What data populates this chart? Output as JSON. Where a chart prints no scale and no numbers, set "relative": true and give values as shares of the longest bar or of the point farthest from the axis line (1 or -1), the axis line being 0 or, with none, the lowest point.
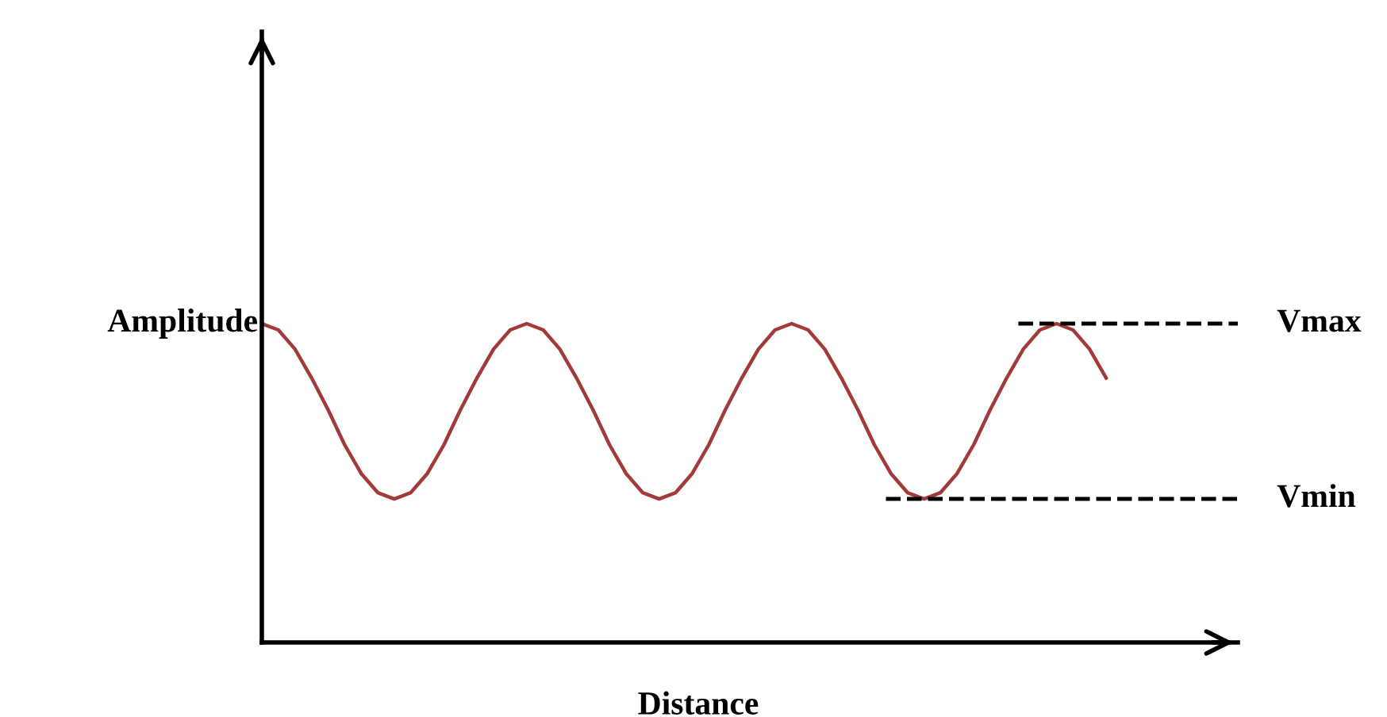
{
  "chart_data": {
    "type": "line",
    "relative": true,
    "xlabel": "Distance",
    "ylabel": "Amplitude",
    "categories": [
      null,
      null,
      null,
      null,
      null,
      null,
      null,
      null,
      null,
      null,
      null,
      null,
      null,
      null,
      null,
      null,
      null,
      null,
      null,
      null,
      null,
      null,
      null,
      null,
      null,
      null,
      null,
      null,
      null,
      null,
      null,
      null,
      null,
      null,
      null,
      null,
      null,
      null,
      null,
      null,
      null,
      null,
      null,
      null,
      null,
      null,
      null,
      null,
      null,
      null,
      null,
      null
    ],
    "series": [
      {
        "color": "#a33a3a",
        "values": [
          1,
          0.98,
          0.92,
          0.83,
          0.73,
          0.62,
          0.53,
          0.47,
          0.45,
          0.47,
          0.53,
          0.62,
          0.73,
          0.83,
          0.92,
          0.98,
          1,
          0.98,
          0.92,
          0.83,
          0.73,
          0.62,
          0.53,
          0.47,
          0.45,
          0.47,
          0.53,
          0.62,
          0.73,
          0.83,
          0.92,
          0.98,
          1,
          0.98,
          0.92,
          0.83,
          0.73,
          0.62,
          0.53,
          0.47,
          0.45,
          0.47,
          0.53,
          0.62,
          0.73,
          0.83,
          0.92,
          0.98,
          1,
          0.98,
          0.92,
          0.83
        ]
      }
    ],
    "ref_lines": [
      {
        "axis": "y",
        "value": 1,
        "label": "Vmax",
        "color": "#000000",
        "line_style": "dashed"
      },
      {
        "axis": "y",
        "value": 0.45,
        "label": "Vmin",
        "color": "#000000",
        "line_style": "dashed"
      }
    ],
    "legend": false,
    "marker": "none",
    "line_style": "solid"
  }
}
